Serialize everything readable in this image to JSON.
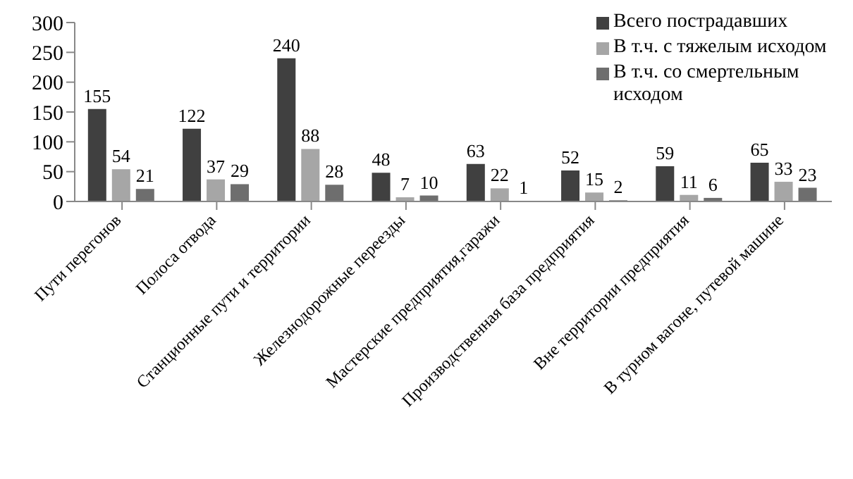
{
  "chart_data": {
    "type": "bar",
    "categories": [
      "Пути перегонов",
      "Полоса отвода",
      "Станционные пути и территории",
      "Железнодорожные  переезды",
      "Мастерские предприятия,гаражи",
      "Производственная база предприятия",
      "Вне территории предприятия",
      "В турном вагоне, путевой машине"
    ],
    "series": [
      {
        "name": "Всего пострадавших",
        "color": "#404040",
        "values": [
          155,
          122,
          240,
          48,
          63,
          52,
          59,
          65
        ]
      },
      {
        "name": "В т.ч. с тяжелым исходом",
        "color": "#a6a6a6",
        "values": [
          54,
          37,
          88,
          7,
          22,
          15,
          11,
          33
        ]
      },
      {
        "name": "В т.ч. со смертельным исходом",
        "color": "#6e6e6e",
        "values": [
          21,
          29,
          28,
          10,
          1,
          2,
          6,
          23
        ]
      }
    ],
    "ylim": [
      0,
      300
    ],
    "yticks": [
      0,
      50,
      100,
      150,
      200,
      250,
      300
    ],
    "grid": false,
    "legend": "top right",
    "data_labels": true
  }
}
